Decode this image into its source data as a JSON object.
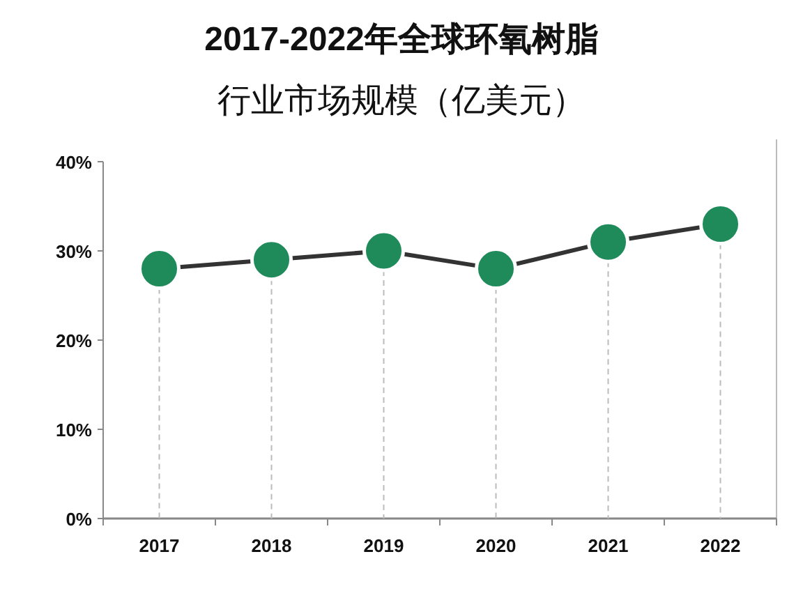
{
  "chart_data": {
    "type": "line",
    "title": "2017-2022年全球环氧树脂",
    "subtitle": "行业市场规模（亿美元）",
    "categories": [
      "2017",
      "2018",
      "2019",
      "2020",
      "2021",
      "2022"
    ],
    "series": [
      {
        "color": "#1f8a5a",
        "values": [
          28,
          29,
          30,
          28,
          31,
          33
        ]
      }
    ],
    "ylim": [
      0,
      40
    ],
    "yticks": [
      {
        "value": 0,
        "label": "0%"
      },
      {
        "value": 10,
        "label": "10%"
      },
      {
        "value": 20,
        "label": "20%"
      },
      {
        "value": 30,
        "label": "30%"
      },
      {
        "value": 40,
        "label": "40%"
      }
    ],
    "marker": "circle",
    "line_style": "solid",
    "grid": "x"
  }
}
